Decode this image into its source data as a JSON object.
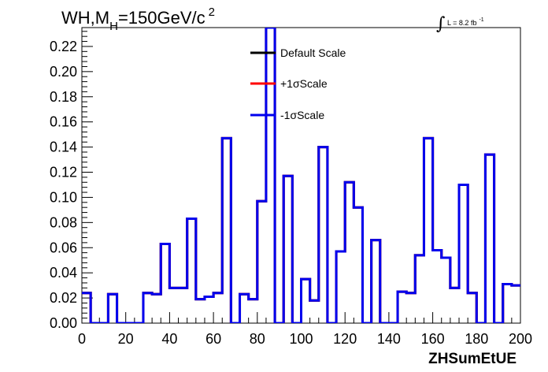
{
  "title": {
    "prefix": "WH,M",
    "sub": "H",
    "value": "=150GeV/c",
    "sup": "2"
  },
  "lumi": {
    "integral_sign": "∫",
    "text": "L = 8.2 fb",
    "sup": "-1"
  },
  "chart_data": {
    "type": "line",
    "style": "step-histogram",
    "xlabel": "ZHSumEtUE",
    "ylabel": "",
    "xlim": [
      0,
      200
    ],
    "ylim": [
      0,
      0.235
    ],
    "x_ticks": [
      0,
      20,
      40,
      60,
      80,
      100,
      120,
      140,
      160,
      180,
      200
    ],
    "y_ticks": [
      0.0,
      0.02,
      0.04,
      0.06,
      0.08,
      0.1,
      0.12,
      0.14,
      0.16,
      0.18,
      0.2,
      0.22
    ],
    "y_tick_labels": [
      "0.00",
      "0.02",
      "0.04",
      "0.06",
      "0.08",
      "0.10",
      "0.12",
      "0.14",
      "0.16",
      "0.18",
      "0.20",
      "0.22"
    ],
    "legend_position": "top-center",
    "bin_edges": [
      0,
      4,
      8,
      12,
      16,
      20,
      24,
      28,
      32,
      36,
      40,
      44,
      48,
      52,
      56,
      60,
      64,
      68,
      72,
      76,
      80,
      84,
      88,
      92,
      96,
      100,
      104,
      108,
      112,
      116,
      120,
      124,
      128,
      132,
      136,
      140,
      144,
      148,
      152,
      156,
      160,
      164,
      168,
      172,
      176,
      180,
      184,
      188,
      192,
      196,
      200
    ],
    "series": [
      {
        "name": "Default Scale",
        "color": "#000000",
        "values": [
          0.024,
          0,
          0,
          0.023,
          0,
          0,
          0,
          0.024,
          0.023,
          0.063,
          0.028,
          0.028,
          0.083,
          0.019,
          0.021,
          0.024,
          0.147,
          0,
          0.023,
          0.019,
          0.097,
          0.235,
          0,
          0.117,
          0,
          0.035,
          0.018,
          0.14,
          0,
          0.057,
          0.112,
          0.092,
          0,
          0.066,
          0,
          0,
          0.025,
          0.024,
          0.054,
          0.147,
          0.058,
          0.052,
          0.028,
          0.11,
          0.024,
          0,
          0.134,
          0,
          0.031,
          0.03
        ]
      },
      {
        "name": "+1σScale",
        "color": "#ff0000",
        "values": [
          0.024,
          0,
          0,
          0.023,
          0,
          0,
          0,
          0.024,
          0.023,
          0.063,
          0.028,
          0.028,
          0.083,
          0.019,
          0.021,
          0.024,
          0.147,
          0,
          0.023,
          0.019,
          0.097,
          0.235,
          0,
          0.117,
          0,
          0.035,
          0.018,
          0.14,
          0,
          0.057,
          0.112,
          0.092,
          0,
          0.066,
          0,
          0,
          0.025,
          0.024,
          0.054,
          0.147,
          0.058,
          0.052,
          0.028,
          0.11,
          0.024,
          0,
          0.134,
          0,
          0.031,
          0.03
        ]
      },
      {
        "name": "-1σScale",
        "color": "#0000ee",
        "values": [
          0.024,
          0,
          0,
          0.023,
          0,
          0,
          0,
          0.024,
          0.023,
          0.063,
          0.028,
          0.028,
          0.083,
          0.019,
          0.021,
          0.024,
          0.147,
          0,
          0.023,
          0.019,
          0.097,
          0.235,
          0,
          0.117,
          0,
          0.035,
          0.018,
          0.14,
          0,
          0.057,
          0.112,
          0.092,
          0,
          0.066,
          0,
          0,
          0.025,
          0.024,
          0.054,
          0.147,
          0.058,
          0.052,
          0.028,
          0.11,
          0.024,
          0,
          0.134,
          0,
          0.031,
          0.03
        ]
      }
    ]
  }
}
